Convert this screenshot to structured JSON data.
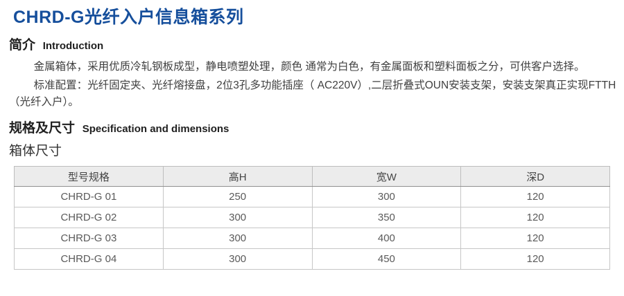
{
  "page_title": "CHRD-G光纤入户信息箱系列",
  "intro": {
    "heading_zh": "简介",
    "heading_en": "Introduction",
    "para1": "金属箱体，采用优质冷轧钢板成型，静电喷塑处理，颜色 通常为白色，有金属面板和塑料面板之分，可供客户选择。",
    "para2": "标准配置：光纤固定夹、光纤熔接盘，2位3孔多功能插座（ AC220V）,二层折叠式OUN安装支架，安装支架真正实现FTTH（光纤入户）。"
  },
  "spec": {
    "heading_zh": "规格及尺寸",
    "heading_en": "Specification and dimensions",
    "subheading": "箱体尺寸",
    "table": {
      "headers": [
        "型号规格",
        "高H",
        "宽W",
        "深D"
      ],
      "rows": [
        [
          "CHRD-G 01",
          "250",
          "300",
          "120"
        ],
        [
          "CHRD-G 02",
          "300",
          "350",
          "120"
        ],
        [
          "CHRD-G 03",
          "300",
          "400",
          "120"
        ],
        [
          "CHRD-G 04",
          "300",
          "450",
          "120"
        ]
      ]
    }
  },
  "colors": {
    "title_blue": "#164f9c",
    "heading_text": "#1f1f1f",
    "body_text": "#404040",
    "table_text": "#5a5a5a",
    "table_header_bg": "#ececec",
    "table_border_outer": "#a6a6a6",
    "table_border_inner": "#c6c6c6"
  }
}
